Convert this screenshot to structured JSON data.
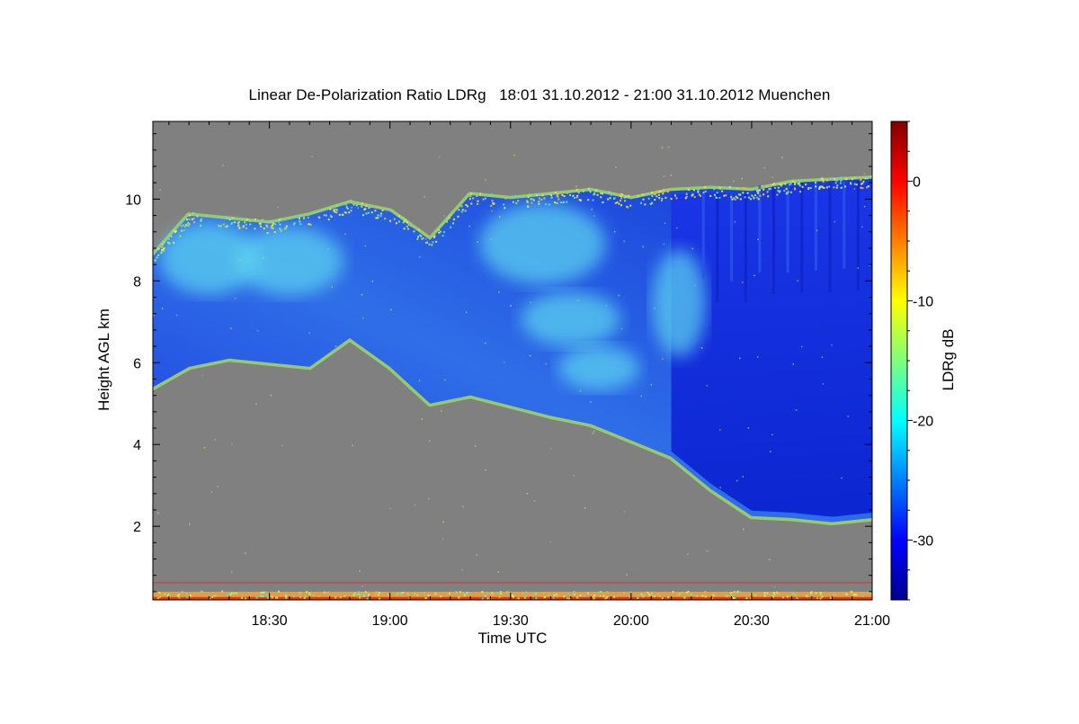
{
  "chart_data": {
    "type": "heatmap",
    "title": "Linear De-Polarization Ratio LDRg   18:01 31.10.2012 - 21:00 31.10.2012 Muenchen",
    "xlabel": "Time UTC",
    "ylabel": "Height AGL km",
    "x_ticks": [
      "18:30",
      "19:00",
      "19:30",
      "20:00",
      "20:30",
      "21:00"
    ],
    "xlim": [
      "18:01",
      "21:00"
    ],
    "y_ticks": [
      2,
      4,
      6,
      8,
      10
    ],
    "ylim": [
      0.2,
      11.9
    ],
    "colorbar": {
      "label": "LDRg dB",
      "ticks": [
        0,
        -10,
        -20,
        -30
      ],
      "range": [
        -35,
        5
      ],
      "colormap": "jet"
    },
    "background_color": "#808080",
    "cloud_base_km": [
      {
        "time": "18:01",
        "height": 5.4
      },
      {
        "time": "18:10",
        "height": 5.9
      },
      {
        "time": "18:20",
        "height": 6.1
      },
      {
        "time": "18:30",
        "height": 6.0
      },
      {
        "time": "18:40",
        "height": 5.9
      },
      {
        "time": "18:50",
        "height": 6.6
      },
      {
        "time": "19:00",
        "height": 5.9
      },
      {
        "time": "19:10",
        "height": 5.0
      },
      {
        "time": "19:20",
        "height": 5.2
      },
      {
        "time": "19:30",
        "height": 4.95
      },
      {
        "time": "19:40",
        "height": 4.7
      },
      {
        "time": "19:50",
        "height": 4.5
      },
      {
        "time": "20:00",
        "height": 4.1
      },
      {
        "time": "20:10",
        "height": 3.7
      },
      {
        "time": "20:20",
        "height": 2.9
      },
      {
        "time": "20:30",
        "height": 2.25
      },
      {
        "time": "20:40",
        "height": 2.2
      },
      {
        "time": "20:50",
        "height": 2.1
      },
      {
        "time": "21:00",
        "height": 2.2
      }
    ],
    "cloud_top_km": [
      {
        "time": "18:01",
        "height": 8.6
      },
      {
        "time": "18:10",
        "height": 9.6
      },
      {
        "time": "18:20",
        "height": 9.5
      },
      {
        "time": "18:30",
        "height": 9.4
      },
      {
        "time": "18:40",
        "height": 9.6
      },
      {
        "time": "18:50",
        "height": 9.9
      },
      {
        "time": "19:00",
        "height": 9.7
      },
      {
        "time": "19:10",
        "height": 9.0
      },
      {
        "time": "19:20",
        "height": 10.1
      },
      {
        "time": "19:30",
        "height": 10.0
      },
      {
        "time": "19:40",
        "height": 10.1
      },
      {
        "time": "19:50",
        "height": 10.2
      },
      {
        "time": "20:00",
        "height": 10.0
      },
      {
        "time": "20:10",
        "height": 10.2
      },
      {
        "time": "20:20",
        "height": 10.25
      },
      {
        "time": "20:30",
        "height": 10.2
      },
      {
        "time": "20:40",
        "height": 10.4
      },
      {
        "time": "20:50",
        "height": 10.45
      },
      {
        "time": "21:00",
        "height": 10.5
      }
    ]
  }
}
